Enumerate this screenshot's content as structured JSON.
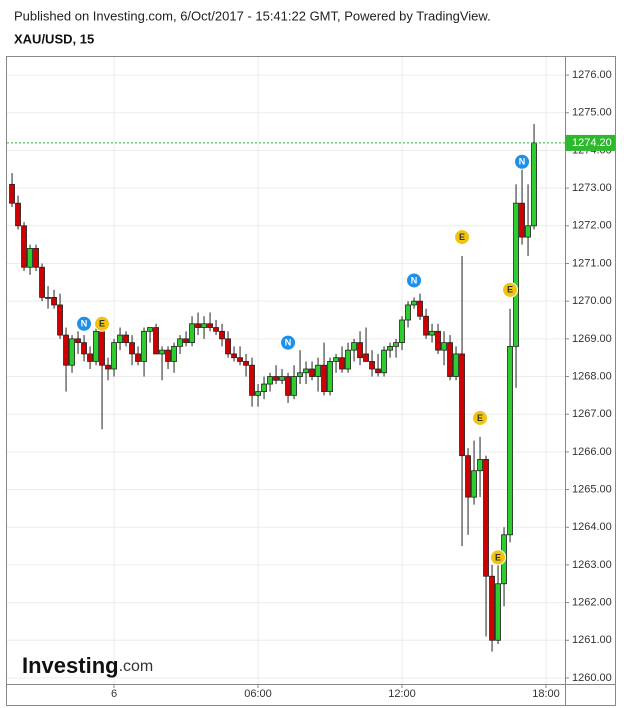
{
  "header": {
    "published": "Published on Investing.com, 6/Oct/2017 - 15:41:22 GMT, Powered by TradingView.",
    "symbol": "XAU/USD, 15"
  },
  "logo": {
    "brand": "Investing",
    "suffix": ".com"
  },
  "chart_data": {
    "type": "candlestick",
    "up_color": "#2ecc2e",
    "down_color": "#d10000",
    "xlim": [
      -4.46,
      18.79
    ],
    "xticks": [
      {
        "value": 0,
        "label": "6"
      },
      {
        "value": 6,
        "label": "06:00"
      },
      {
        "value": 12,
        "label": "12:00"
      },
      {
        "value": 18,
        "label": "18:00"
      }
    ],
    "ylim": [
      1259.84,
      1276.48
    ],
    "yticks": [
      {
        "value": 1260,
        "label": "1260.00"
      },
      {
        "value": 1261,
        "label": "1261.00"
      },
      {
        "value": 1262,
        "label": "1262.00"
      },
      {
        "value": 1263,
        "label": "1263.00"
      },
      {
        "value": 1264,
        "label": "1264.00"
      },
      {
        "value": 1265,
        "label": "1265.00"
      },
      {
        "value": 1266,
        "label": "1266.00"
      },
      {
        "value": 1267,
        "label": "1267.00"
      },
      {
        "value": 1268,
        "label": "1268.00"
      },
      {
        "value": 1269,
        "label": "1269.00"
      },
      {
        "value": 1270,
        "label": "1270.00"
      },
      {
        "value": 1271,
        "label": "1271.00"
      },
      {
        "value": 1272,
        "label": "1272.00"
      },
      {
        "value": 1273,
        "label": "1273.00"
      },
      {
        "value": 1274,
        "label": "1274.00"
      },
      {
        "value": 1275,
        "label": "1275.00"
      },
      {
        "value": 1276,
        "label": "1276.00"
      }
    ],
    "grid": true,
    "x": [
      -4.25,
      -4,
      -3.75,
      -3.5,
      -3.25,
      -3,
      -2.75,
      -2.5,
      -2.25,
      -2,
      -1.75,
      -1.5,
      -1.25,
      -1,
      -0.75,
      -0.5,
      -0.25,
      0,
      0.25,
      0.5,
      0.75,
      1,
      1.25,
      1.5,
      1.75,
      2,
      2.25,
      2.5,
      2.75,
      3,
      3.25,
      3.5,
      3.75,
      4,
      4.25,
      4.5,
      4.75,
      5,
      5.25,
      5.5,
      5.75,
      6,
      6.25,
      6.5,
      6.75,
      7,
      7.25,
      7.5,
      7.75,
      8,
      8.25,
      8.5,
      8.75,
      9,
      9.25,
      9.5,
      9.75,
      10,
      10.25,
      10.5,
      10.75,
      11,
      11.25,
      11.5,
      11.75,
      12,
      12.25,
      12.5,
      12.75,
      13,
      13.25,
      13.5,
      13.75,
      14,
      14.25,
      14.5,
      14.75,
      15,
      15.25,
      15.5,
      15.75,
      16,
      16.25,
      16.5,
      16.75,
      17,
      17.25,
      17.5
    ],
    "open": [
      1273.1,
      1272.6,
      1272.0,
      1270.9,
      1271.4,
      1270.9,
      1270.1,
      1270.1,
      1269.9,
      1269.1,
      1268.3,
      1269.0,
      1268.9,
      1268.6,
      1268.4,
      1269.2,
      1268.3,
      1268.2,
      1268.9,
      1269.1,
      1268.9,
      1268.6,
      1268.4,
      1269.2,
      1269.3,
      1268.6,
      1268.7,
      1268.4,
      1268.8,
      1269.0,
      1268.9,
      1269.4,
      1269.3,
      1269.4,
      1269.3,
      1269.2,
      1269.0,
      1268.6,
      1268.5,
      1268.4,
      1268.3,
      1267.5,
      1267.6,
      1267.8,
      1268.0,
      1267.9,
      1268.0,
      1267.5,
      1268.0,
      1268.1,
      1268.2,
      1268.0,
      1268.3,
      1267.6,
      1268.4,
      1268.5,
      1268.2,
      1268.7,
      1268.9,
      1268.6,
      1268.4,
      1268.2,
      1268.1,
      1268.7,
      1268.8,
      1268.9,
      1269.5,
      1269.9,
      1270.0,
      1269.6,
      1269.1,
      1269.2,
      1268.7,
      1268.9,
      1268.0,
      1268.6,
      1265.9,
      1264.8,
      1265.5,
      1265.8,
      1262.7,
      1261.0,
      1262.5,
      1263.8,
      1268.8,
      1272.6,
      1271.7,
      1272.0
    ],
    "high": [
      1273.4,
      1272.8,
      1272.1,
      1271.5,
      1271.5,
      1271.0,
      1270.4,
      1270.3,
      1270.2,
      1269.3,
      1269.1,
      1269.2,
      1269.1,
      1268.8,
      1269.4,
      1269.3,
      1268.5,
      1269.0,
      1269.3,
      1269.2,
      1269.1,
      1268.8,
      1269.3,
      1269.3,
      1269.4,
      1268.8,
      1268.8,
      1268.9,
      1269.1,
      1269.2,
      1269.6,
      1269.7,
      1269.6,
      1269.7,
      1269.5,
      1269.4,
      1269.2,
      1268.8,
      1268.8,
      1268.6,
      1268.5,
      1267.8,
      1268.0,
      1268.1,
      1268.3,
      1268.2,
      1268.1,
      1268.3,
      1268.7,
      1268.4,
      1268.4,
      1268.5,
      1268.9,
      1268.5,
      1268.6,
      1268.8,
      1268.9,
      1269.0,
      1269.2,
      1269.3,
      1268.7,
      1268.6,
      1268.8,
      1268.9,
      1269.0,
      1269.6,
      1270.0,
      1270.1,
      1270.2,
      1269.8,
      1269.4,
      1269.4,
      1269.2,
      1269.1,
      1268.8,
      1271.2,
      1266.1,
      1266.3,
      1266.4,
      1265.9,
      1263.0,
      1263.0,
      1264.0,
      1269.8,
      1273.1,
      1273.8,
      1273.1,
      1274.7
    ],
    "low": [
      1272.5,
      1271.9,
      1270.8,
      1270.7,
      1270.8,
      1270.0,
      1269.8,
      1269.8,
      1269.0,
      1267.6,
      1268.1,
      1268.6,
      1268.4,
      1268.2,
      1268.3,
      1266.6,
      1267.9,
      1268.0,
      1268.7,
      1268.8,
      1268.3,
      1268.3,
      1268.0,
      1268.9,
      1268.6,
      1267.9,
      1268.2,
      1268.1,
      1268.6,
      1268.8,
      1268.8,
      1269.1,
      1269.0,
      1269.2,
      1269.1,
      1268.8,
      1268.5,
      1268.4,
      1268.3,
      1268.0,
      1267.2,
      1267.2,
      1267.4,
      1267.6,
      1267.8,
      1267.8,
      1267.3,
      1267.4,
      1267.8,
      1267.8,
      1267.9,
      1267.6,
      1267.5,
      1267.5,
      1268.1,
      1268.1,
      1268.1,
      1268.4,
      1268.3,
      1268.4,
      1268.0,
      1268.0,
      1268.0,
      1268.5,
      1268.5,
      1268.7,
      1269.3,
      1269.8,
      1269.5,
      1269.0,
      1268.9,
      1268.6,
      1268.3,
      1267.9,
      1267.9,
      1263.5,
      1263.8,
      1264.6,
      1264.8,
      1261.1,
      1260.7,
      1260.9,
      1261.9,
      1263.6,
      1267.7,
      1271.5,
      1271.2,
      1271.9
    ],
    "close": [
      1272.6,
      1272.0,
      1270.9,
      1271.4,
      1270.9,
      1270.1,
      1270.1,
      1269.9,
      1269.1,
      1268.3,
      1269.0,
      1268.9,
      1268.6,
      1268.4,
      1269.2,
      1268.3,
      1268.2,
      1268.9,
      1269.1,
      1268.9,
      1268.6,
      1268.4,
      1269.2,
      1269.3,
      1268.6,
      1268.7,
      1268.4,
      1268.8,
      1269.0,
      1268.9,
      1269.4,
      1269.3,
      1269.4,
      1269.3,
      1269.2,
      1269.0,
      1268.6,
      1268.5,
      1268.4,
      1268.3,
      1267.5,
      1267.6,
      1267.8,
      1268.0,
      1267.9,
      1268.0,
      1267.5,
      1268.0,
      1268.1,
      1268.2,
      1268.0,
      1268.3,
      1267.6,
      1268.4,
      1268.5,
      1268.2,
      1268.7,
      1268.9,
      1268.5,
      1268.4,
      1268.2,
      1268.1,
      1268.7,
      1268.8,
      1268.9,
      1269.5,
      1269.9,
      1270.0,
      1269.6,
      1269.1,
      1269.2,
      1268.7,
      1268.9,
      1268.0,
      1268.6,
      1265.9,
      1264.8,
      1265.5,
      1265.8,
      1262.7,
      1261.0,
      1262.5,
      1263.8,
      1268.8,
      1272.6,
      1271.7,
      1272.0,
      1274.2
    ],
    "last_price": {
      "value": 1274.2,
      "label": "1274.20",
      "color": "#2eb82e"
    },
    "events": [
      {
        "label": "N",
        "x": -1.25,
        "y": 1269.4,
        "color": "#1e90e8"
      },
      {
        "label": "E",
        "x": -0.5,
        "y": 1269.4,
        "color": "#f2c40f"
      },
      {
        "label": "N",
        "x": 7.25,
        "y": 1268.9,
        "color": "#1e90e8"
      },
      {
        "label": "N",
        "x": 12.5,
        "y": 1270.55,
        "color": "#1e90e8"
      },
      {
        "label": "E",
        "x": 14.5,
        "y": 1271.7,
        "color": "#f2c40f"
      },
      {
        "label": "E",
        "x": 15.25,
        "y": 1266.9,
        "color": "#f2c40f"
      },
      {
        "label": "E",
        "x": 16.0,
        "y": 1263.2,
        "color": "#f2c40f"
      },
      {
        "label": "E",
        "x": 16.5,
        "y": 1270.3,
        "color": "#f2c40f"
      },
      {
        "label": "N",
        "x": 17.0,
        "y": 1273.7,
        "color": "#1e90e8"
      }
    ]
  }
}
